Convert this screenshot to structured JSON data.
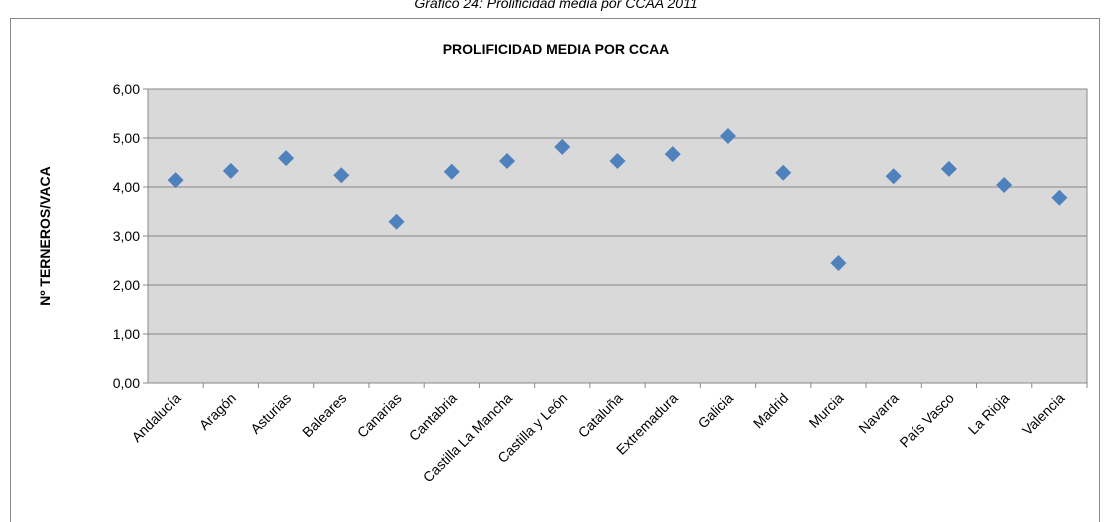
{
  "caption": "Gráfico 24: Prolificidad media por CCAA 2011",
  "chart_data": {
    "type": "scatter",
    "title": "PROLIFICIDAD MEDIA POR CCAA",
    "y_label": "Nº TERNEROS/VACA",
    "categories": [
      "Andalucía",
      "Aragón",
      "Asturias",
      "Baleares",
      "Canarias",
      "Cantabria",
      "Castilla La Mancha",
      "Castilla y León",
      "Cataluña",
      "Extremadura",
      "Galicia",
      "Madrid",
      "Murcia",
      "Navarra",
      "País Vasco",
      "La Rioja",
      "Valencia"
    ],
    "values": [
      4.14,
      4.33,
      4.59,
      4.24,
      3.29,
      4.31,
      4.53,
      4.82,
      4.53,
      4.67,
      5.04,
      4.29,
      2.45,
      4.22,
      4.37,
      4.04,
      3.78
    ],
    "color": "#4f81bd",
    "ylim": [
      0,
      6
    ],
    "yticks": [
      {
        "value": 0,
        "label": "0,00"
      },
      {
        "value": 1,
        "label": "1,00"
      },
      {
        "value": 2,
        "label": "2,00"
      },
      {
        "value": 3,
        "label": "3,00"
      },
      {
        "value": 4,
        "label": "4,00"
      },
      {
        "value": 5,
        "label": "5,00"
      },
      {
        "value": 6,
        "label": "6,00"
      }
    ],
    "grid": true
  }
}
